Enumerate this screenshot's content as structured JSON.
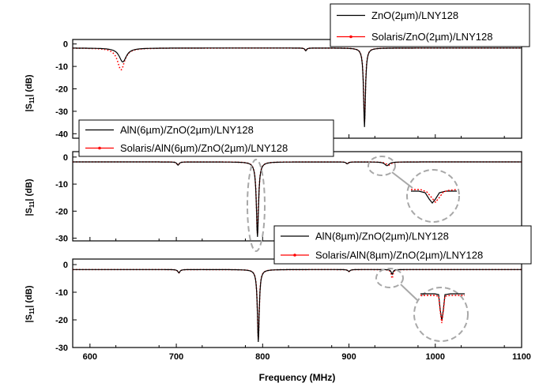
{
  "chart_data": [
    {
      "type": "line",
      "xlabel": "",
      "ylabel": "|S11| (dB)",
      "xlim": [
        580,
        1100
      ],
      "ylim": [
        -42,
        2
      ],
      "yticks": [
        0,
        -10,
        -20,
        -30,
        -40
      ],
      "xticks": [
        600,
        700,
        800,
        900,
        1000,
        1100
      ],
      "legend_position": "top-right",
      "series": [
        {
          "name": "ZnO(2µm)/LNY128",
          "color": "#000000",
          "style": "solid",
          "baseline": -1.8,
          "dips": [
            {
              "x": 638,
              "depth": -8,
              "width": 5
            },
            {
              "x": 850,
              "depth": -3,
              "width": 1.2
            },
            {
              "x": 918,
              "depth": -37,
              "width": 1.3
            }
          ]
        },
        {
          "name": "Solaris/ZnO(2µm)/LNY128",
          "color": "#ff0000",
          "style": "dotted",
          "baseline": -1.8,
          "dips": [
            {
              "x": 636,
              "depth": -11.5,
              "width": 5
            },
            {
              "x": 850,
              "depth": -3,
              "width": 1.2
            },
            {
              "x": 918,
              "depth": -35,
              "width": 1.3
            }
          ]
        }
      ]
    },
    {
      "type": "line",
      "xlabel": "",
      "ylabel": "|S11| (dB)",
      "xlim": [
        580,
        1100
      ],
      "ylim": [
        -31,
        2
      ],
      "yticks": [
        0,
        -10,
        -20,
        -30
      ],
      "xticks": [
        600,
        700,
        800,
        900,
        1000,
        1100
      ],
      "legend_position": "top-left",
      "series": [
        {
          "name": "AlN(6µm)/ZnO(2µm)/LNY128",
          "color": "#000000",
          "style": "solid",
          "baseline": -1.8,
          "dips": [
            {
              "x": 702,
              "depth": -3,
              "width": 1.5
            },
            {
              "x": 794,
              "depth": -29.5,
              "width": 1.5
            },
            {
              "x": 898,
              "depth": -2.5,
              "width": 1.5
            },
            {
              "x": 944,
              "depth": -3.2,
              "width": 3
            }
          ]
        },
        {
          "name": "Solaris/AlN(6µm)/ZnO(2µm)/LNY128",
          "color": "#ff0000",
          "style": "dotted",
          "baseline": -1.8,
          "dips": [
            {
              "x": 702,
              "depth": -3,
              "width": 1.5
            },
            {
              "x": 794,
              "depth": -28.5,
              "width": 1.5
            },
            {
              "x": 898,
              "depth": -2.5,
              "width": 1.5
            },
            {
              "x": 946,
              "depth": -3,
              "width": 3.5
            }
          ]
        }
      ]
    },
    {
      "type": "line",
      "xlabel": "Frequency (MHz)",
      "ylabel": "|S11| (dB)",
      "xlim": [
        580,
        1100
      ],
      "ylim": [
        -30,
        2
      ],
      "yticks": [
        0,
        -10,
        -20,
        -30
      ],
      "xticks": [
        600,
        700,
        800,
        900,
        1000,
        1100
      ],
      "legend_position": "top-right",
      "series": [
        {
          "name": "AlN(8µm)/ZnO(2µm)/LNY128",
          "color": "#000000",
          "style": "solid",
          "baseline": -1.8,
          "dips": [
            {
              "x": 703,
              "depth": -3,
              "width": 1.5
            },
            {
              "x": 795,
              "depth": -28,
              "width": 1.3
            },
            {
              "x": 900,
              "depth": -2.5,
              "width": 1.5
            },
            {
              "x": 950,
              "depth": -3.5,
              "width": 1.2
            }
          ]
        },
        {
          "name": "Solaris/AlN(8µm)/ZnO(2µm)/LNY128",
          "color": "#ff0000",
          "style": "dotted",
          "baseline": -1.8,
          "dips": [
            {
              "x": 703,
              "depth": -3,
              "width": 1.5
            },
            {
              "x": 795,
              "depth": -27,
              "width": 1.3
            },
            {
              "x": 900,
              "depth": -2.5,
              "width": 1.5
            },
            {
              "x": 950,
              "depth": -5,
              "width": 1.2
            }
          ]
        }
      ]
    }
  ]
}
